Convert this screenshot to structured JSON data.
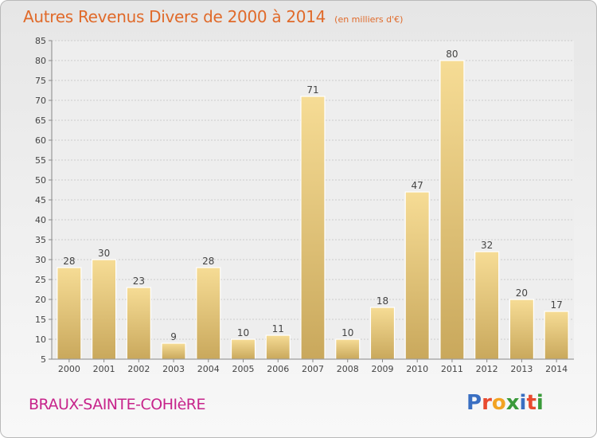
{
  "chart_data": {
    "type": "bar",
    "title": "Autres Revenus Divers de 2000 à 2014",
    "subtitle": "(en milliers d'€)",
    "categories": [
      "2000",
      "2001",
      "2002",
      "2003",
      "2004",
      "2005",
      "2006",
      "2007",
      "2008",
      "2009",
      "2010",
      "2011",
      "2012",
      "2013",
      "2014"
    ],
    "values": [
      28,
      30,
      23,
      9,
      28,
      10,
      11,
      71,
      10,
      18,
      47,
      80,
      32,
      20,
      17
    ],
    "data_labels": [
      "28",
      "30",
      "23",
      "9",
      "28",
      "10",
      "11",
      "71",
      "10",
      "18",
      "47",
      "80",
      "32",
      "20",
      "17"
    ],
    "y_ticks": [
      "5",
      "10",
      "15",
      "20",
      "25",
      "30",
      "35",
      "40",
      "45",
      "50",
      "55",
      "60",
      "65",
      "70",
      "75",
      "80",
      "85"
    ],
    "ylim": [
      5,
      85
    ],
    "xlabel": "",
    "ylabel": "",
    "grid": true,
    "bar_color": "#e8c879"
  },
  "footer": {
    "town": "BRAUX-SAINTE-COHIèRE",
    "logo_text": "Proxiti",
    "logo_colors": [
      "#3a6fc2",
      "#e84a2f",
      "#f2a323",
      "#3a9a3a",
      "#3a6fc2",
      "#e84a2f",
      "#3a9a3a"
    ]
  }
}
